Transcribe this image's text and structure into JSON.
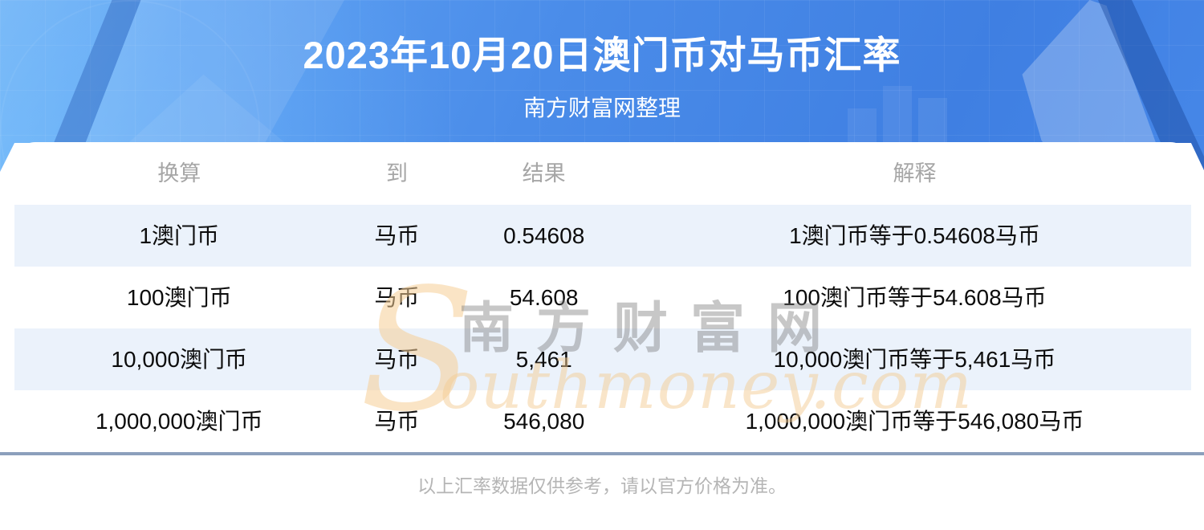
{
  "header": {
    "title": "2023年10月20日澳门币对马币汇率",
    "subtitle": "南方财富网整理"
  },
  "table": {
    "headers": [
      "换算",
      "到",
      "结果",
      "解释"
    ],
    "rows": [
      {
        "convert": "1澳门币",
        "to": "马币",
        "result": "0.54608",
        "explain": "1澳门币等于0.54608马币"
      },
      {
        "convert": "100澳门币",
        "to": "马币",
        "result": "54.608",
        "explain": "100澳门币等于54.608马币"
      },
      {
        "convert": "10,000澳门币",
        "to": "马币",
        "result": "5,461",
        "explain": "10,000澳门币等于5,461马币"
      },
      {
        "convert": "1,000,000澳门币",
        "to": "马币",
        "result": "546,080",
        "explain": "1,000,000澳门币等于546,080马币"
      }
    ]
  },
  "watermark": {
    "initial": "S",
    "script": "outhmoney.com",
    "cn": "南方财富网"
  },
  "footer": {
    "note": "以上汇率数据仅供参考，请以官方价格为准。"
  },
  "colors": {
    "header_blue": "#4a8ce9",
    "row_stripe": "#ebf2fb",
    "divider": "#8c9fbc",
    "watermark_orange": "#f3cb96",
    "watermark_gray": "#8a8a8a",
    "header_text": "#ffffff",
    "column_header_gray": "#a6a6a6"
  },
  "chart_data": {
    "type": "table",
    "title": "2023年10月20日澳门币对马币汇率",
    "date": "2023年10月20日",
    "base_currency": "澳门币",
    "quote_currency": "马币",
    "unit_rate": 0.54608,
    "columns": [
      "换算",
      "到",
      "结果",
      "解释"
    ],
    "rows": [
      [
        "1澳门币",
        "马币",
        "0.54608",
        "1澳门币等于0.54608马币"
      ],
      [
        "100澳门币",
        "马币",
        "54.608",
        "100澳门币等于54.608马币"
      ],
      [
        "10,000澳门币",
        "马币",
        "5,461",
        "10,000澳门币等于5,461马币"
      ],
      [
        "1,000,000澳门币",
        "马币",
        "546,080",
        "1,000,000澳门币等于546,080马币"
      ]
    ]
  }
}
